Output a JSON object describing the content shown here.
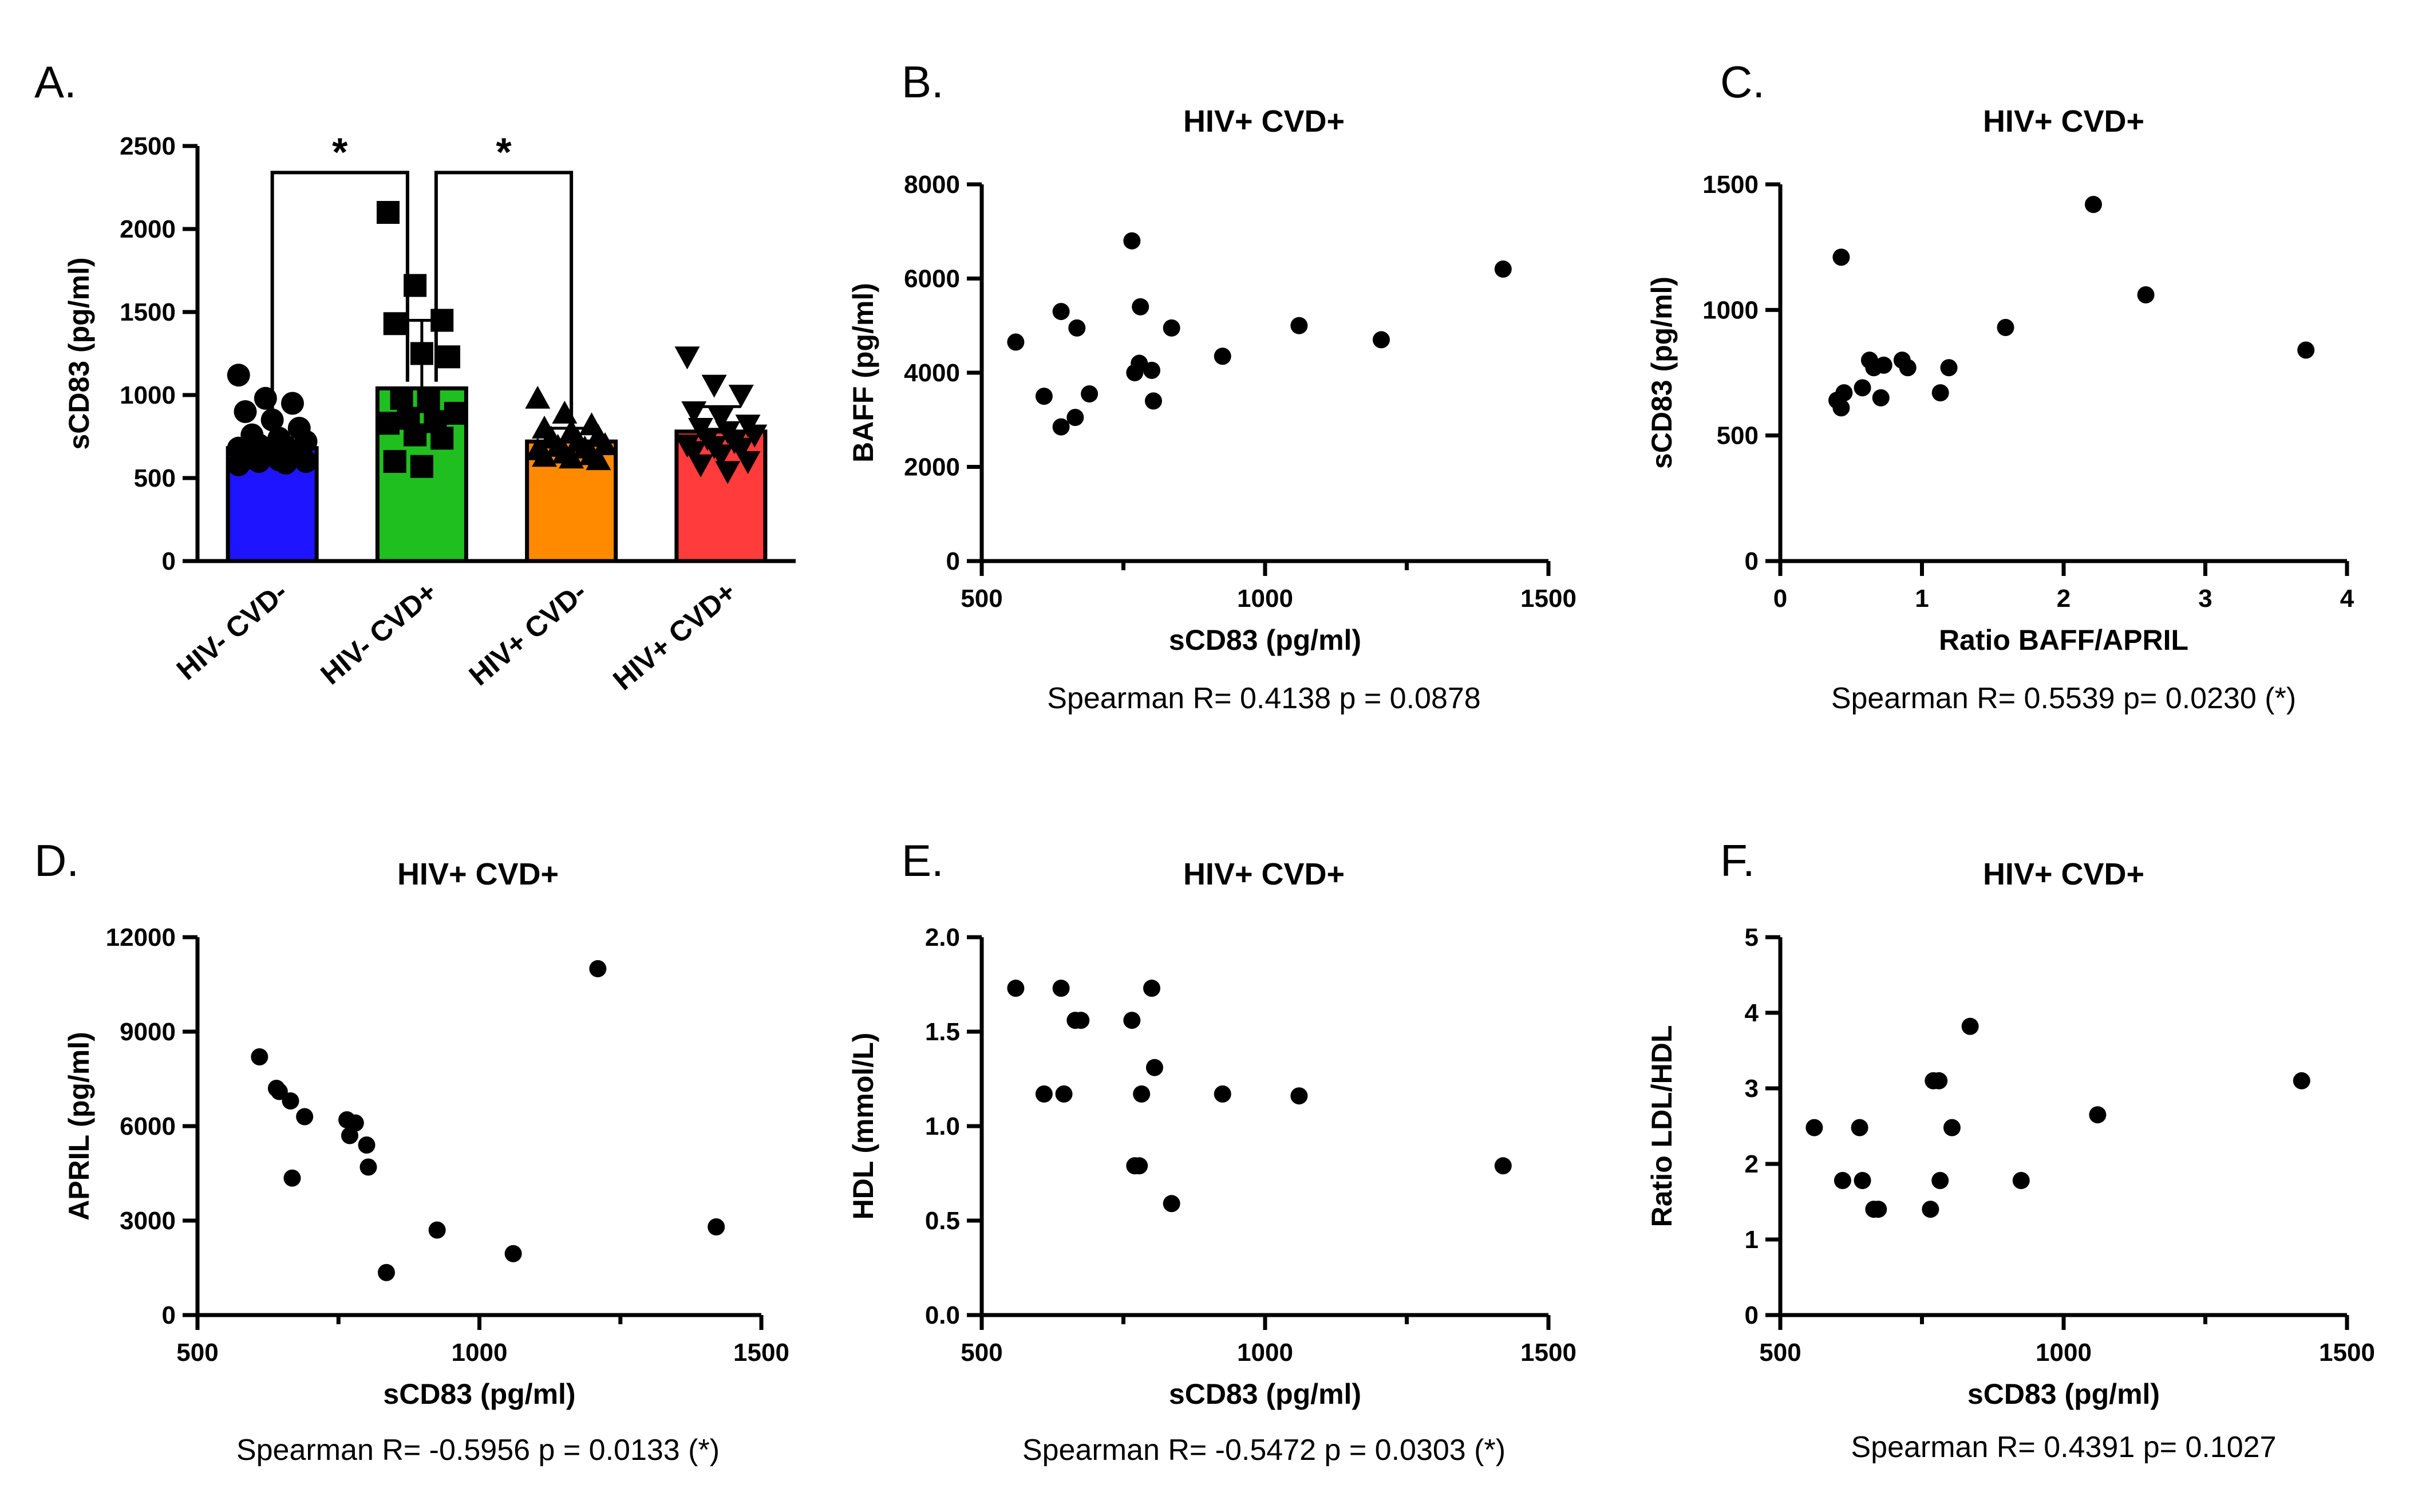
{
  "chart_data": [
    {
      "panel": "A.",
      "type": "bar",
      "title": "",
      "ylabel": "sCD83 (pg/ml)",
      "xlabel": "",
      "ylim": [
        0,
        2500
      ],
      "yticks": [
        0,
        500,
        1000,
        1500,
        2000,
        2500
      ],
      "categories": [
        "HIV- CVD-",
        "HIV- CVD+",
        "HIV+ CVD-",
        "HIV+ CVD+"
      ],
      "values": [
        680,
        1040,
        720,
        780
      ],
      "errors": [
        60,
        410,
        80,
        150
      ],
      "colors": [
        "#1f14ff",
        "#1fbf1f",
        "#ff8a00",
        "#ff3b3b"
      ],
      "markers": [
        "circle",
        "square",
        "triangle-up",
        "triangle-down"
      ],
      "points": [
        [
          1120,
          980,
          950,
          900,
          850,
          800,
          760,
          740,
          720,
          700,
          690,
          680,
          670,
          660,
          650,
          640,
          630,
          620,
          610,
          600,
          600,
          590,
          580
        ],
        [
          2100,
          1660,
          1450,
          1430,
          1250,
          1230,
          980,
          960,
          890,
          860,
          840,
          830,
          760,
          740,
          600,
          570
        ],
        [
          980,
          890,
          820,
          800,
          780,
          750,
          740,
          720,
          700,
          690,
          680,
          670,
          650,
          640,
          630,
          620,
          610
        ],
        [
          1230,
          1060,
          1000,
          900,
          860,
          820,
          800,
          780,
          760,
          740,
          720,
          700,
          690,
          680,
          660,
          640,
          600,
          580,
          540
        ]
      ],
      "significance": [
        {
          "from": 0,
          "to": 1,
          "label": "*"
        },
        {
          "from": 1,
          "to": 2,
          "label": "*"
        }
      ]
    },
    {
      "panel": "B.",
      "type": "scatter",
      "title": "HIV+ CVD+",
      "xlabel": "sCD83 (pg/ml)",
      "ylabel": "BAFF (pg/ml)",
      "xlim": [
        500,
        1500
      ],
      "ylim": [
        0,
        8000
      ],
      "xticks": [
        500,
        1000,
        1500
      ],
      "yticks": [
        0,
        2000,
        4000,
        6000,
        8000
      ],
      "x": [
        560,
        610,
        640,
        640,
        665,
        668,
        690,
        765,
        770,
        778,
        780,
        800,
        803,
        835,
        925,
        1060,
        1205,
        1420
      ],
      "y": [
        4650,
        3500,
        5300,
        2850,
        3050,
        4950,
        3550,
        6800,
        4000,
        4200,
        5400,
        4050,
        3400,
        4950,
        4350,
        5000,
        4700,
        6200
      ],
      "stat_text": "Spearman R= 0.4138     p = 0.0878"
    },
    {
      "panel": "C.",
      "type": "scatter",
      "title": "HIV+ CVD+",
      "xlabel": "Ratio BAFF/APRIL",
      "ylabel": "sCD83 (pg/ml)",
      "xlim": [
        0,
        4
      ],
      "ylim": [
        0,
        1500
      ],
      "xticks": [
        0,
        1,
        2,
        3,
        4
      ],
      "yticks": [
        0,
        500,
        1000,
        1500
      ],
      "x": [
        0.4,
        0.43,
        0.45,
        0.43,
        0.58,
        0.63,
        0.66,
        0.73,
        0.71,
        0.86,
        0.9,
        1.13,
        1.19,
        1.59,
        2.21,
        2.58,
        3.71
      ],
      "y": [
        640,
        610,
        670,
        1210,
        690,
        800,
        770,
        780,
        650,
        800,
        770,
        670,
        770,
        930,
        1420,
        1060,
        840
      ],
      "stat_text": "Spearman R= 0.5539     p= 0.0230  (*)"
    },
    {
      "panel": "D.",
      "type": "scatter",
      "title": "HIV+ CVD+",
      "xlabel": "sCD83 (pg/ml)",
      "ylabel": "APRIL (pg/ml)",
      "xlim": [
        500,
        1500
      ],
      "ylim": [
        0,
        12000
      ],
      "xticks": [
        500,
        1000,
        1500
      ],
      "yticks": [
        0,
        3000,
        6000,
        9000,
        12000
      ],
      "x": [
        610,
        640,
        645,
        665,
        668,
        690,
        765,
        770,
        780,
        800,
        803,
        835,
        925,
        1060,
        1210,
        1420
      ],
      "y": [
        8200,
        7200,
        7100,
        6800,
        4350,
        6300,
        6200,
        5700,
        6100,
        5400,
        4700,
        1350,
        2700,
        1950,
        11000,
        2800
      ],
      "stat_text": "Spearman R= -0.5956    p = 0.0133 (*)"
    },
    {
      "panel": "E.",
      "type": "scatter",
      "title": "HIV+ CVD+",
      "xlabel": "sCD83 (pg/ml)",
      "ylabel": "HDL (mmol/L)",
      "xlim": [
        500,
        1500
      ],
      "ylim": [
        0,
        2.0
      ],
      "xticks": [
        500,
        1000,
        1500
      ],
      "yticks": [
        0.0,
        0.5,
        1.0,
        1.5,
        2.0
      ],
      "x": [
        560,
        610,
        640,
        645,
        665,
        675,
        765,
        770,
        778,
        782,
        800,
        805,
        835,
        925,
        1060,
        1420
      ],
      "y": [
        1.73,
        1.17,
        1.73,
        1.17,
        1.56,
        1.56,
        1.56,
        0.79,
        0.79,
        1.17,
        1.73,
        1.31,
        0.59,
        1.17,
        1.16,
        0.79
      ],
      "stat_text": "Spearman R= -0.5472    p = 0.0303   (*)"
    },
    {
      "panel": "F.",
      "type": "scatter",
      "title": "HIV+ CVD+",
      "xlabel": "sCD83 (pg/ml)",
      "ylabel": "Ratio LDL/HDL",
      "xlim": [
        500,
        1500
      ],
      "ylim": [
        0,
        5
      ],
      "xticks": [
        500,
        1000,
        1500
      ],
      "yticks": [
        0,
        1,
        2,
        3,
        4,
        5
      ],
      "x": [
        560,
        610,
        640,
        645,
        665,
        673,
        765,
        770,
        780,
        782,
        803,
        835,
        925,
        1060,
        1420
      ],
      "y": [
        2.48,
        1.78,
        2.48,
        1.78,
        1.4,
        1.4,
        1.4,
        3.1,
        3.1,
        1.78,
        2.48,
        3.82,
        1.78,
        2.65,
        3.1
      ],
      "stat_text": "Spearman R= 0.4391     p= 0.1027"
    }
  ]
}
